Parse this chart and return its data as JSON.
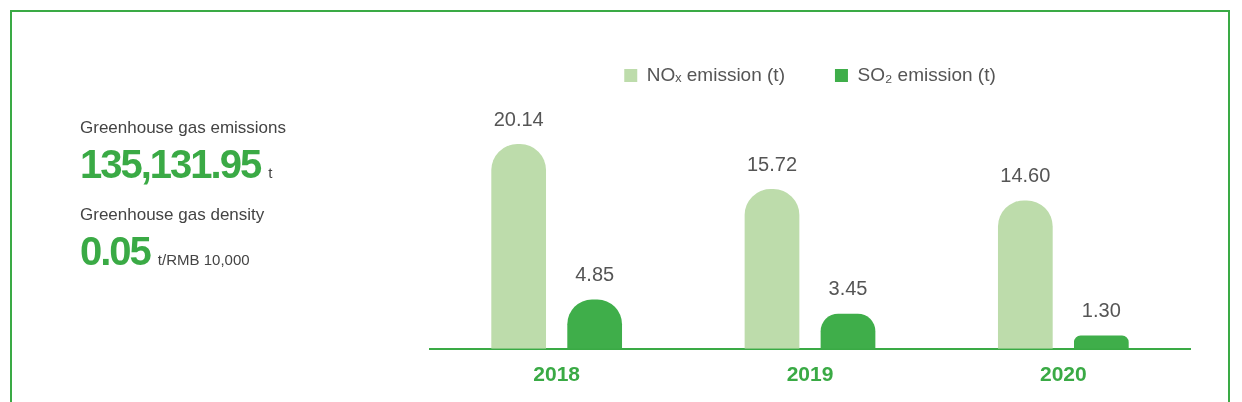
{
  "chart_data": [
    {
      "type": "other",
      "annotations": [
        "Greenhouse gas emissions",
        "135,131.95",
        "t",
        "Greenhouse gas density",
        "0.05",
        "t/RMB 10,000"
      ]
    },
    {
      "type": "bar",
      "categories": [
        "2018",
        "2019",
        "2020"
      ],
      "legend": "top",
      "grid": false,
      "series": [
        {
          "name": "NOₓ emission (t)",
          "color": "#bddcab",
          "values": [
            20.14,
            15.72,
            14.6
          ],
          "value_labels": [
            "20.14",
            "15.72",
            "14.60"
          ]
        },
        {
          "name": "SO₂ emission (t)",
          "color": "#3fae4a",
          "values": [
            4.85,
            3.45,
            1.3
          ],
          "value_labels": [
            "4.85",
            "3.45",
            "1.30"
          ]
        }
      ]
    }
  ]
}
